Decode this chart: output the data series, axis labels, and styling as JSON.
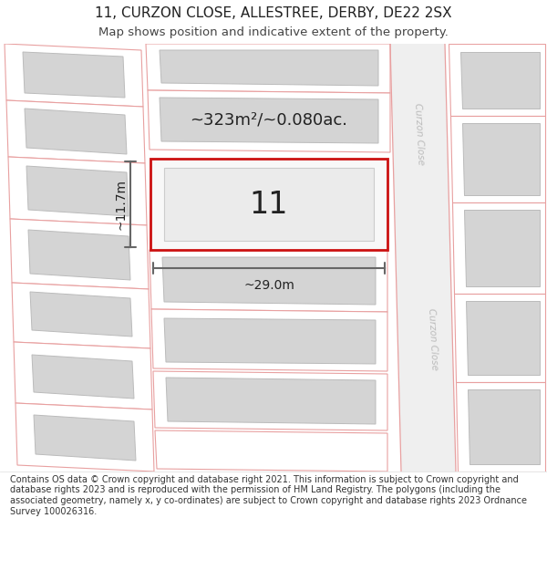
{
  "title_line1": "11, CURZON CLOSE, ALLESTREE, DERBY, DE22 2SX",
  "title_line2": "Map shows position and indicative extent of the property.",
  "footer_text": "Contains OS data © Crown copyright and database right 2021. This information is subject to Crown copyright and database rights 2023 and is reproduced with the permission of HM Land Registry. The polygons (including the associated geometry, namely x, y co-ordinates) are subject to Crown copyright and database rights 2023 Ordnance Survey 100026316.",
  "property_number": "11",
  "area_text": "~323m²/~0.080ac.",
  "dim_width": "~29.0m",
  "dim_height": "~11.7m",
  "bg": "#ffffff",
  "road_fill": "#efefef",
  "plot_line": "#e8a0a0",
  "plot_red": "#cc1111",
  "bldg_fill": "#d4d4d4",
  "bldg_edge": "#bbbbbb",
  "road_text": "#bbbbbb",
  "dim_line": "#666666",
  "text_dark": "#222222",
  "text_sub": "#444444",
  "curzon_label": "Curzon Close"
}
